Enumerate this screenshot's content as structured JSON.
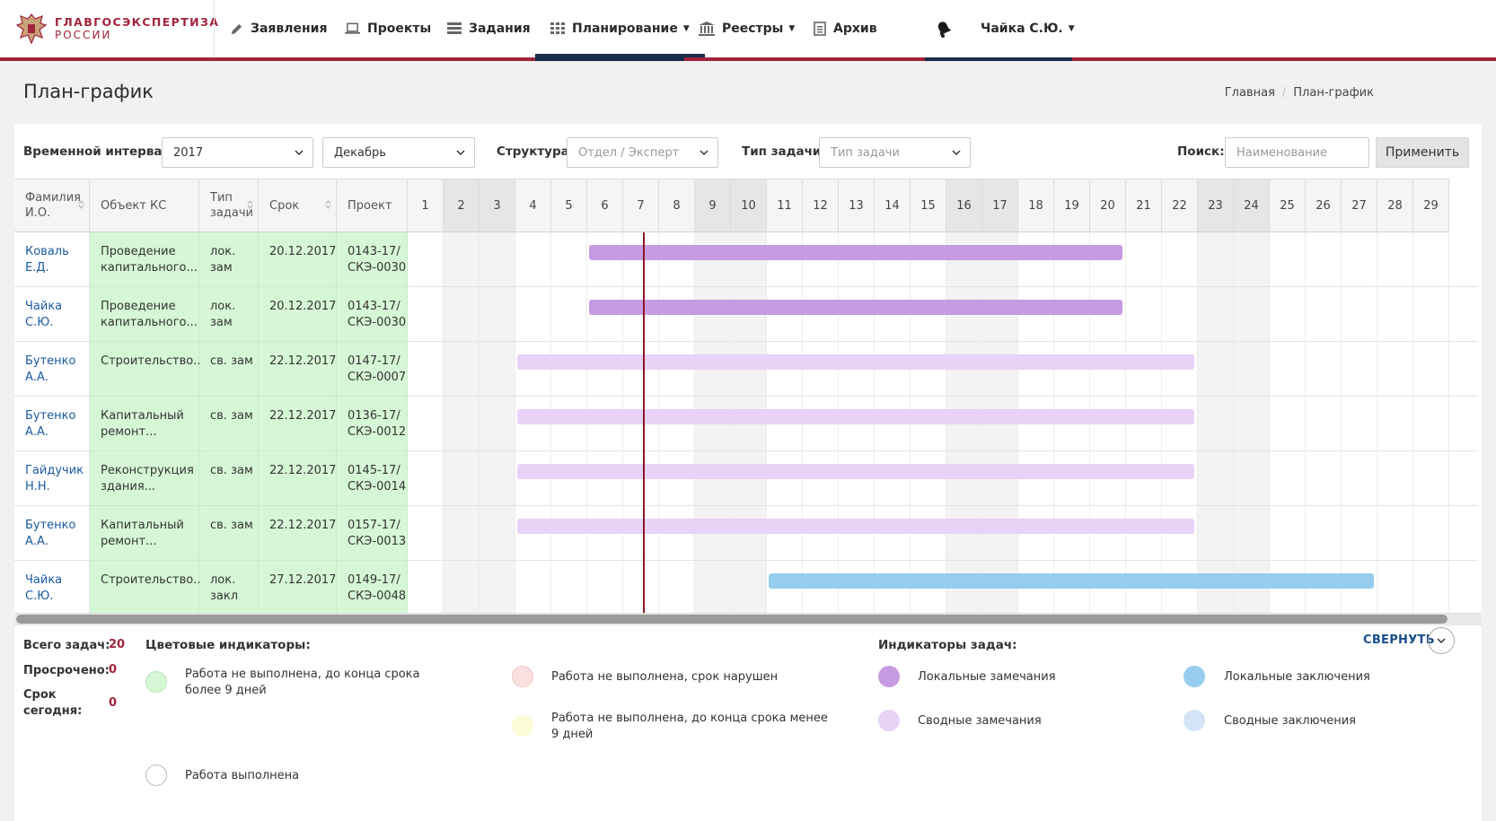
{
  "brand": {
    "line1": "ГЛАВГОСЭКСПЕРТИЗА",
    "line2": "РОССИИ"
  },
  "nav": {
    "items": [
      {
        "label": "Заявления",
        "icon": "pencil-icon"
      },
      {
        "label": "Проекты",
        "icon": "laptop-icon"
      },
      {
        "label": "Задания",
        "icon": "list-icon"
      },
      {
        "label": "Планирование",
        "icon": "grid-icon",
        "dropdown": true,
        "active": true
      },
      {
        "label": "Реестры",
        "icon": "institution-icon",
        "dropdown": true
      },
      {
        "label": "Архив",
        "icon": "document-icon"
      }
    ],
    "user": "Чайка С.Ю.",
    "accent": "#a0243b",
    "navy": "#1a2b4a"
  },
  "page": {
    "title": "План-график"
  },
  "breadcrumb": {
    "home": "Главная",
    "current": "План-график"
  },
  "filters": {
    "interval_label": "Временной интервал:",
    "year": "2017",
    "month": "Декабрь",
    "structure_label": "Структура:",
    "structure_placeholder": "Отдел / Эксперт",
    "type_label": "Тип задачи:",
    "type_placeholder": "Тип задачи",
    "search_label": "Поиск:",
    "search_placeholder": "Наименование",
    "apply_label": "Применить"
  },
  "table": {
    "headers": {
      "name": "Фамилия И.О.",
      "object": "Объект КС",
      "type": "Тип задачи",
      "deadline": "Срок",
      "project": "Проект"
    },
    "days": [
      1,
      2,
      3,
      4,
      5,
      6,
      7,
      8,
      9,
      10,
      11,
      12,
      13,
      14,
      15,
      16,
      17,
      18,
      19,
      20,
      21,
      22,
      23,
      24,
      25,
      26,
      27,
      28,
      29
    ],
    "weekend_days": [
      2,
      3,
      9,
      10,
      16,
      17,
      23,
      24
    ],
    "today_day": 7.5,
    "rows": [
      {
        "name": "Коваль Е.Д.",
        "object": "Проведение капитального...",
        "type": "лок. зам",
        "deadline": "20.12.2017",
        "project": "0143-17/ СКЭ-0030",
        "start": 6,
        "end": 20,
        "color": "#c79be2"
      },
      {
        "name": "Чайка С.Ю.",
        "object": "Проведение капитального...",
        "type": "лок. зам",
        "deadline": "20.12.2017",
        "project": "0143-17/ СКЭ-0030",
        "start": 6,
        "end": 20,
        "color": "#c79be2"
      },
      {
        "name": "Бутенко А.А.",
        "object": "Строительство...",
        "type": "св. зам",
        "deadline": "22.12.2017",
        "project": "0147-17/ СКЭ-0007",
        "start": 4,
        "end": 22,
        "color": "#e8d2f6"
      },
      {
        "name": "Бутенко А.А.",
        "object": "Капитальный ремонт...",
        "type": "св. зам",
        "deadline": "22.12.2017",
        "project": "0136-17/ СКЭ-0012",
        "start": 4,
        "end": 22,
        "color": "#e8d2f6"
      },
      {
        "name": "Гайдучик Н.Н.",
        "object": "Реконструкция здания...",
        "type": "св. зам",
        "deadline": "22.12.2017",
        "project": "0145-17/ СКЭ-0014",
        "start": 4,
        "end": 22,
        "color": "#e8d2f6"
      },
      {
        "name": "Бутенко А.А.",
        "object": "Капитальный ремонт...",
        "type": "св. зам",
        "deadline": "22.12.2017",
        "project": "0157-17/ СКЭ-0013",
        "start": 4,
        "end": 22,
        "color": "#e8d2f6"
      },
      {
        "name": "Чайка С.Ю.",
        "object": "Строительство...",
        "type": "лок. закл",
        "deadline": "27.12.2017",
        "project": "0149-17/ СКЭ-0048",
        "start": 11,
        "end": 27,
        "color": "#96cdee"
      }
    ]
  },
  "stats": {
    "total_label": "Всего задач:",
    "total": "20",
    "overdue_label": "Просрочено:",
    "overdue": "0",
    "today_label": "Срок сегодня:",
    "today": "0"
  },
  "legend": {
    "color_title": "Цветовые индикаторы:",
    "task_title": "Индикаторы задач:",
    "items": [
      {
        "text": "Работа не выполнена, до конца срока более 9 дней",
        "color": "#d6f7d6"
      },
      {
        "text": "Работа не выполнена, срок нарушен",
        "color": "#fbe0e0"
      },
      {
        "text": "Работа не выполнена, до конца срока менее 9 дней",
        "color": "#fbfbd6"
      },
      {
        "text": "Работа выполнена",
        "color": "#ffffff"
      }
    ],
    "tasks": [
      {
        "text": "Локальные замечания",
        "color": "#c79be2"
      },
      {
        "text": "Локальные заключения",
        "color": "#96cdee"
      },
      {
        "text": "Сводные замечания",
        "color": "#e8d2f6"
      },
      {
        "text": "Сводные заключения",
        "color": "#d2e4f6"
      }
    ],
    "collapse_label": "СВЕРНУТЬ"
  }
}
